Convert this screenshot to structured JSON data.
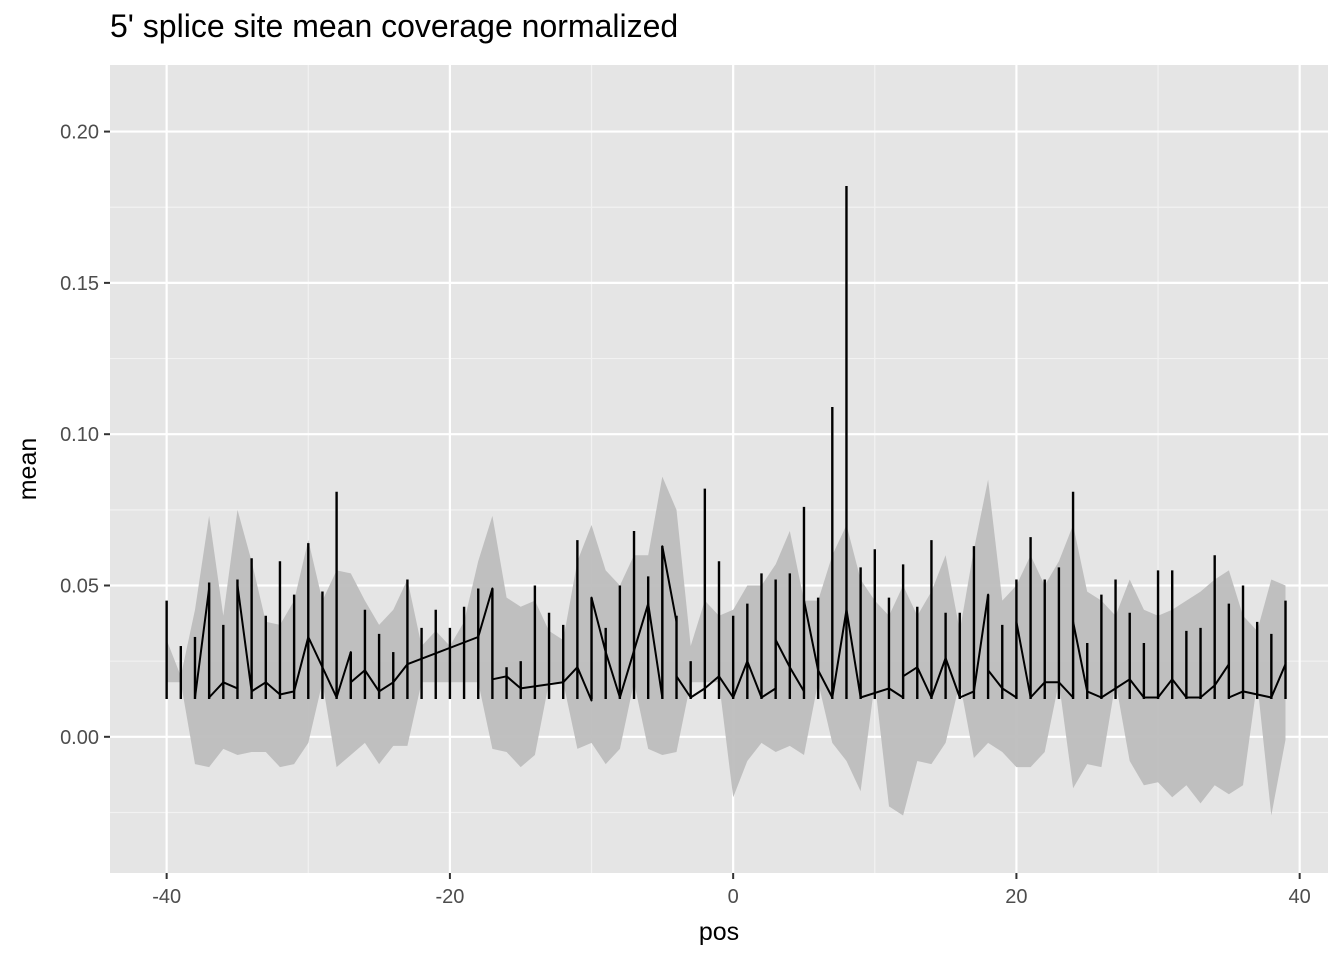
{
  "chart_data": {
    "type": "line",
    "title": "5' splice site mean coverage normalized",
    "xlabel": "pos",
    "ylabel": "mean",
    "xlim": [
      -44,
      42
    ],
    "ylim": [
      -0.045,
      0.222
    ],
    "x_ticks": [
      -40,
      -20,
      0,
      20,
      40
    ],
    "x_tick_labels": [
      "-40",
      "-20",
      "0",
      "20",
      "40"
    ],
    "y_ticks": [
      0.0,
      0.05,
      0.1,
      0.15,
      0.2
    ],
    "y_tick_labels": [
      "0.00",
      "0.05",
      "0.10",
      "0.15",
      "0.20"
    ],
    "grid": true,
    "legend": "none",
    "series": [
      {
        "line_color": "#000000",
        "ribbon_color": "#bdbdbd",
        "points": [
          {
            "x": -40,
            "max": 0.045,
            "low": 0.018,
            "high": 0.032
          },
          {
            "x": -39,
            "max": 0.03,
            "low": 0.018,
            "high": 0.02
          },
          {
            "x": -38,
            "max": 0.033,
            "low": -0.009,
            "high": 0.042
          },
          {
            "x": -37,
            "max": 0.051,
            "low": -0.01,
            "high": 0.073
          },
          {
            "x": -36,
            "max": 0.037,
            "low": -0.004,
            "high": 0.04
          },
          {
            "x": -35,
            "max": 0.052,
            "low": -0.006,
            "high": 0.075
          },
          {
            "x": -34,
            "max": 0.059,
            "low": -0.005,
            "high": 0.058
          },
          {
            "x": -33,
            "max": 0.04,
            "low": -0.005,
            "high": 0.038
          },
          {
            "x": -32,
            "max": 0.058,
            "low": -0.01,
            "high": 0.037
          },
          {
            "x": -31,
            "max": 0.047,
            "low": -0.009,
            "high": 0.045
          },
          {
            "x": -30,
            "max": 0.064,
            "low": -0.002,
            "high": 0.065
          },
          {
            "x": -29,
            "max": 0.048,
            "low": 0.018,
            "high": 0.045
          },
          {
            "x": -28,
            "max": 0.081,
            "low": -0.01,
            "high": 0.055
          },
          {
            "x": -27,
            "max": 0.028,
            "low": -0.006,
            "high": 0.054
          },
          {
            "x": -26,
            "max": 0.042,
            "low": -0.002,
            "high": 0.045
          },
          {
            "x": -25,
            "max": 0.034,
            "low": -0.009,
            "high": 0.037
          },
          {
            "x": -24,
            "max": 0.028,
            "low": -0.003,
            "high": 0.042
          },
          {
            "x": -23,
            "max": 0.052,
            "low": -0.003,
            "high": 0.052
          },
          {
            "x": -22,
            "max": 0.036,
            "low": 0.018,
            "high": 0.03
          },
          {
            "x": -21,
            "max": 0.042,
            "low": 0.018,
            "high": 0.035
          },
          {
            "x": -20,
            "max": 0.036,
            "low": 0.018,
            "high": 0.03
          },
          {
            "x": -19,
            "max": 0.043,
            "low": 0.018,
            "high": 0.038
          },
          {
            "x": -18,
            "max": 0.049,
            "low": 0.018,
            "high": 0.058
          },
          {
            "x": -17,
            "max": 0.049,
            "low": -0.004,
            "high": 0.073
          },
          {
            "x": -16,
            "max": 0.023,
            "low": -0.005,
            "high": 0.046
          },
          {
            "x": -15,
            "max": 0.025,
            "low": -0.01,
            "high": 0.043
          },
          {
            "x": -14,
            "max": 0.05,
            "low": -0.006,
            "high": 0.045
          },
          {
            "x": -13,
            "max": 0.041,
            "low": 0.018,
            "high": 0.035
          },
          {
            "x": -12,
            "max": 0.037,
            "low": 0.018,
            "high": 0.032
          },
          {
            "x": -11,
            "max": 0.065,
            "low": -0.004,
            "high": 0.058
          },
          {
            "x": -10,
            "max": 0.046,
            "low": -0.002,
            "high": 0.07
          },
          {
            "x": -9,
            "max": 0.036,
            "low": -0.009,
            "high": 0.055
          },
          {
            "x": -8,
            "max": 0.05,
            "low": -0.004,
            "high": 0.05
          },
          {
            "x": -7,
            "max": 0.068,
            "low": 0.018,
            "high": 0.06
          },
          {
            "x": -6,
            "max": 0.053,
            "low": -0.004,
            "high": 0.06
          },
          {
            "x": -5,
            "max": 0.063,
            "low": -0.006,
            "high": 0.086
          },
          {
            "x": -4,
            "max": 0.04,
            "low": -0.005,
            "high": 0.075
          },
          {
            "x": -3,
            "max": 0.025,
            "low": 0.018,
            "high": 0.03
          },
          {
            "x": -2,
            "max": 0.082,
            "low": 0.018,
            "high": 0.045
          },
          {
            "x": -1,
            "max": 0.058,
            "low": 0.018,
            "high": 0.04
          },
          {
            "x": 0,
            "max": 0.04,
            "low": -0.02,
            "high": 0.042
          },
          {
            "x": 1,
            "max": 0.044,
            "low": -0.008,
            "high": 0.05
          },
          {
            "x": 2,
            "max": 0.054,
            "low": -0.002,
            "high": 0.05
          },
          {
            "x": 3,
            "max": 0.052,
            "low": -0.005,
            "high": 0.057
          },
          {
            "x": 4,
            "max": 0.054,
            "low": -0.003,
            "high": 0.068
          },
          {
            "x": 5,
            "max": 0.076,
            "low": -0.006,
            "high": 0.045
          },
          {
            "x": 6,
            "max": 0.046,
            "low": 0.018,
            "high": 0.045
          },
          {
            "x": 7,
            "max": 0.109,
            "low": -0.002,
            "high": 0.06
          },
          {
            "x": 8,
            "max": 0.182,
            "low": -0.008,
            "high": 0.07
          },
          {
            "x": 9,
            "max": 0.056,
            "low": -0.018,
            "high": 0.052
          },
          {
            "x": 10,
            "max": 0.062,
            "low": 0.018,
            "high": 0.045
          },
          {
            "x": 11,
            "max": 0.046,
            "low": -0.023,
            "high": 0.04
          },
          {
            "x": 12,
            "max": 0.057,
            "low": -0.026,
            "high": 0.05
          },
          {
            "x": 13,
            "max": 0.043,
            "low": -0.008,
            "high": 0.04
          },
          {
            "x": 14,
            "max": 0.065,
            "low": -0.009,
            "high": 0.048
          },
          {
            "x": 15,
            "max": 0.041,
            "low": -0.002,
            "high": 0.06
          },
          {
            "x": 16,
            "max": 0.041,
            "low": 0.018,
            "high": 0.035
          },
          {
            "x": 17,
            "max": 0.063,
            "low": -0.007,
            "high": 0.062
          },
          {
            "x": 18,
            "max": 0.047,
            "low": -0.002,
            "high": 0.085
          },
          {
            "x": 19,
            "max": 0.037,
            "low": -0.005,
            "high": 0.045
          },
          {
            "x": 20,
            "max": 0.052,
            "low": -0.01,
            "high": 0.05
          },
          {
            "x": 21,
            "max": 0.066,
            "low": -0.01,
            "high": 0.06
          },
          {
            "x": 22,
            "max": 0.052,
            "low": -0.005,
            "high": 0.05
          },
          {
            "x": 23,
            "max": 0.056,
            "low": 0.018,
            "high": 0.058
          },
          {
            "x": 24,
            "max": 0.081,
            "low": -0.017,
            "high": 0.07
          },
          {
            "x": 25,
            "max": 0.031,
            "low": -0.009,
            "high": 0.048
          },
          {
            "x": 26,
            "max": 0.047,
            "low": -0.01,
            "high": 0.045
          },
          {
            "x": 27,
            "max": 0.052,
            "low": 0.018,
            "high": 0.04
          },
          {
            "x": 28,
            "max": 0.041,
            "low": -0.008,
            "high": 0.052
          },
          {
            "x": 29,
            "max": 0.031,
            "low": -0.016,
            "high": 0.042
          },
          {
            "x": 30,
            "max": 0.055,
            "low": -0.015,
            "high": 0.04
          },
          {
            "x": 31,
            "max": 0.055,
            "low": -0.02,
            "high": 0.042
          },
          {
            "x": 32,
            "max": 0.035,
            "low": -0.016,
            "high": 0.045
          },
          {
            "x": 33,
            "max": 0.036,
            "low": -0.022,
            "high": 0.048
          },
          {
            "x": 34,
            "max": 0.06,
            "low": -0.016,
            "high": 0.052
          },
          {
            "x": 35,
            "max": 0.044,
            "low": -0.019,
            "high": 0.055
          },
          {
            "x": 36,
            "max": 0.05,
            "low": -0.016,
            "high": 0.04
          },
          {
            "x": 37,
            "max": 0.038,
            "low": 0.018,
            "high": 0.035
          },
          {
            "x": 38,
            "max": 0.034,
            "low": -0.026,
            "high": 0.052
          },
          {
            "x": 39,
            "max": 0.045,
            "low": -0.001,
            "high": 0.05
          }
        ],
        "mean_line": [
          [
            -38,
            0.013
          ],
          [
            -37,
            0.049
          ],
          [
            -37,
            0.013
          ],
          [
            -36,
            0.018
          ],
          [
            -35,
            0.016
          ],
          [
            -35,
            0.05
          ],
          [
            -34,
            0.015
          ],
          [
            -33,
            0.018
          ],
          [
            -32,
            0.014
          ],
          [
            -31,
            0.015
          ],
          [
            -30,
            0.033
          ],
          [
            -28,
            0.013
          ],
          [
            -27,
            0.028
          ],
          [
            -27,
            0.018
          ],
          [
            -26,
            0.022
          ],
          [
            -25,
            0.015
          ],
          [
            -24,
            0.018
          ],
          [
            -23,
            0.024
          ],
          [
            -18,
            0.033
          ],
          [
            -17,
            0.049
          ],
          [
            -17,
            0.019
          ],
          [
            -16,
            0.02
          ],
          [
            -15,
            0.016
          ],
          [
            -12,
            0.018
          ],
          [
            -11,
            0.023
          ],
          [
            -10,
            0.012
          ],
          [
            -10,
            0.046
          ],
          [
            -9,
            0.028
          ],
          [
            -8,
            0.013
          ],
          [
            -6,
            0.044
          ],
          [
            -5,
            0.013
          ],
          [
            -5,
            0.063
          ],
          [
            -4,
            0.038
          ],
          [
            -4,
            0.02
          ],
          [
            -3,
            0.013
          ],
          [
            -2,
            0.016
          ],
          [
            -1,
            0.02
          ],
          [
            0,
            0.013
          ],
          [
            1,
            0.025
          ],
          [
            2,
            0.013
          ],
          [
            3,
            0.016
          ],
          [
            3,
            0.032
          ],
          [
            4,
            0.023
          ],
          [
            5,
            0.015
          ],
          [
            5,
            0.045
          ],
          [
            6,
            0.022
          ],
          [
            7,
            0.013
          ],
          [
            8,
            0.042
          ],
          [
            9,
            0.013
          ],
          [
            11,
            0.016
          ],
          [
            12,
            0.013
          ],
          [
            12,
            0.02
          ],
          [
            13,
            0.023
          ],
          [
            14,
            0.013
          ],
          [
            15,
            0.026
          ],
          [
            16,
            0.013
          ],
          [
            17,
            0.015
          ],
          [
            18,
            0.047
          ],
          [
            18,
            0.022
          ],
          [
            19,
            0.016
          ],
          [
            20,
            0.013
          ],
          [
            20,
            0.038
          ],
          [
            21,
            0.013
          ],
          [
            22,
            0.018
          ],
          [
            23,
            0.018
          ],
          [
            24,
            0.013
          ],
          [
            24,
            0.038
          ],
          [
            25,
            0.015
          ],
          [
            26,
            0.013
          ],
          [
            28,
            0.019
          ],
          [
            29,
            0.013
          ],
          [
            30,
            0.013
          ],
          [
            31,
            0.019
          ],
          [
            32,
            0.013
          ],
          [
            33,
            0.013
          ],
          [
            34,
            0.017
          ],
          [
            35,
            0.024
          ],
          [
            35,
            0.013
          ],
          [
            36,
            0.015
          ],
          [
            38,
            0.013
          ],
          [
            39,
            0.024
          ]
        ],
        "baseline": 0.0125
      }
    ]
  }
}
